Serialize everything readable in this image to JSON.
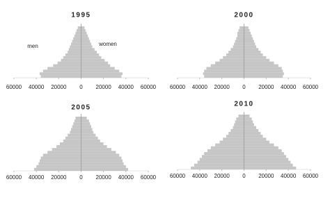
{
  "chart_data": [
    {
      "type": "pyramid",
      "title": "1995",
      "annotations": [
        "men",
        "women"
      ],
      "categories": [
        null,
        null,
        null,
        null,
        null,
        null,
        null,
        null,
        null,
        null,
        null,
        null,
        null,
        null,
        null,
        null,
        null,
        null,
        null
      ],
      "series": [
        {
          "name": "men",
          "color": "#c6c6c6",
          "values": [
            -36000,
            -37000,
            -34000,
            -30000,
            -25000,
            -21000,
            -18000,
            -16000,
            -14000,
            -12000,
            -11000,
            -10000,
            -9000,
            -8000,
            -7000,
            -6000,
            -5000,
            -4000,
            -3000
          ]
        },
        {
          "name": "women",
          "color": "#c6c6c6",
          "values": [
            36000,
            37000,
            34000,
            30000,
            26000,
            24000,
            21000,
            18000,
            16000,
            14000,
            12000,
            10000,
            9000,
            8000,
            7000,
            6000,
            5000,
            4000,
            3000
          ]
        }
      ],
      "xlim": [
        -60000,
        60000
      ],
      "xticks": [
        {
          "value": -60000,
          "label": "60000"
        },
        {
          "value": -40000,
          "label": "40000"
        },
        {
          "value": -20000,
          "label": "20000"
        },
        0,
        20000,
        40000,
        60000
      ]
    },
    {
      "type": "pyramid",
      "title": "2000",
      "categories": [
        null,
        null,
        null,
        null,
        null,
        null,
        null,
        null,
        null,
        null,
        null,
        null,
        null,
        null,
        null,
        null,
        null,
        null,
        null
      ],
      "series": [
        {
          "name": "men",
          "color": "#c6c6c6",
          "values": [
            -36000,
            -37000,
            -36000,
            -34000,
            -30000,
            -26000,
            -22000,
            -19000,
            -16000,
            -14000,
            -12000,
            -10000,
            -9000,
            -8000,
            -7000,
            -6000,
            -6000,
            -5000,
            -4000
          ]
        },
        {
          "name": "women",
          "color": "#c6c6c6",
          "values": [
            35000,
            36000,
            35000,
            34000,
            31000,
            27000,
            23000,
            20000,
            17000,
            15000,
            13000,
            11000,
            10000,
            9000,
            8000,
            7000,
            6000,
            5000,
            4000
          ]
        }
      ],
      "xlim": [
        -60000,
        60000
      ],
      "xticks": [
        {
          "value": -60000,
          "label": "60000"
        },
        {
          "value": -40000,
          "label": "40000"
        },
        {
          "value": -20000,
          "label": "20000"
        },
        0,
        20000,
        40000,
        60000
      ]
    },
    {
      "type": "pyramid",
      "title": "2005",
      "categories": [
        null,
        null,
        null,
        null,
        null,
        null,
        null,
        null,
        null,
        null,
        null,
        null,
        null,
        null,
        null,
        null,
        null,
        null,
        null
      ],
      "series": [
        {
          "name": "men",
          "color": "#c6c6c6",
          "values": [
            -42000,
            -40000,
            -38000,
            -37000,
            -36000,
            -34000,
            -30000,
            -26000,
            -22000,
            -19000,
            -16000,
            -14000,
            -12000,
            -10000,
            -9000,
            -8000,
            -7000,
            -6000,
            -5000
          ]
        },
        {
          "name": "women",
          "color": "#c6c6c6",
          "values": [
            42000,
            40000,
            38000,
            37000,
            36000,
            34000,
            31000,
            27000,
            23000,
            20000,
            17000,
            15000,
            13000,
            11000,
            10000,
            9000,
            8000,
            7000,
            5000
          ]
        }
      ],
      "xlim": [
        -60000,
        60000
      ],
      "xticks": [
        {
          "value": -60000,
          "label": "60000"
        },
        {
          "value": -40000,
          "label": "40000"
        },
        {
          "value": -20000,
          "label": "20000"
        },
        0,
        20000,
        40000,
        60000
      ]
    },
    {
      "type": "pyramid",
      "title": "2010",
      "categories": [
        null,
        null,
        null,
        null,
        null,
        null,
        null,
        null,
        null,
        null,
        null,
        null,
        null,
        null,
        null,
        null,
        null,
        null,
        null
      ],
      "series": [
        {
          "name": "men",
          "color": "#c6c6c6",
          "values": [
            -48000,
            -45000,
            -42000,
            -40000,
            -38000,
            -36000,
            -33000,
            -30000,
            -26000,
            -22000,
            -19000,
            -16000,
            -14000,
            -12000,
            -10000,
            -9000,
            -8000,
            -7000,
            -5000
          ]
        },
        {
          "name": "women",
          "color": "#c6c6c6",
          "values": [
            47000,
            44000,
            42000,
            40000,
            38000,
            36000,
            34000,
            31000,
            27000,
            23000,
            20000,
            17000,
            15000,
            13000,
            11000,
            9000,
            8000,
            7000,
            5000
          ]
        }
      ],
      "xlim": [
        -60000,
        60000
      ],
      "xticks": [
        {
          "value": -60000,
          "label": "60000"
        },
        {
          "value": -40000,
          "label": "40000"
        },
        {
          "value": -20000,
          "label": "20000"
        },
        0,
        20000,
        40000,
        60000
      ]
    }
  ]
}
